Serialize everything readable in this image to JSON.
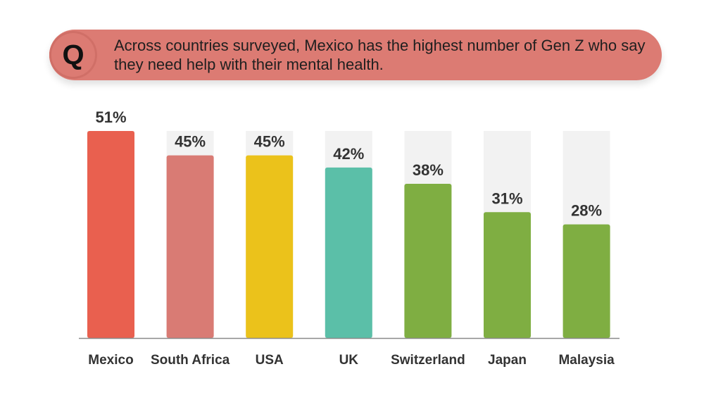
{
  "question": {
    "icon": "Q",
    "text": "Across countries surveyed, Mexico has the highest number of Gen Z who say they need help with their mental health."
  },
  "chart_data": {
    "type": "bar",
    "categories": [
      "Mexico",
      "South Africa",
      "USA",
      "UK",
      "Switzerland",
      "Japan",
      "Malaysia"
    ],
    "values": [
      51,
      45,
      45,
      42,
      38,
      31,
      28
    ],
    "value_labels": [
      "51%",
      "45%",
      "45%",
      "42%",
      "38%",
      "31%",
      "28%"
    ],
    "unit": "%",
    "ylim": [
      0,
      51
    ],
    "grid": false,
    "colors": [
      "#e9604f",
      "#d97b74",
      "#ebc21b",
      "#5bbfa8",
      "#7fae42",
      "#7fae42",
      "#7fae42"
    ],
    "background_bar_color": "#f2f2f2",
    "axis_color": "#8a8a8a"
  }
}
